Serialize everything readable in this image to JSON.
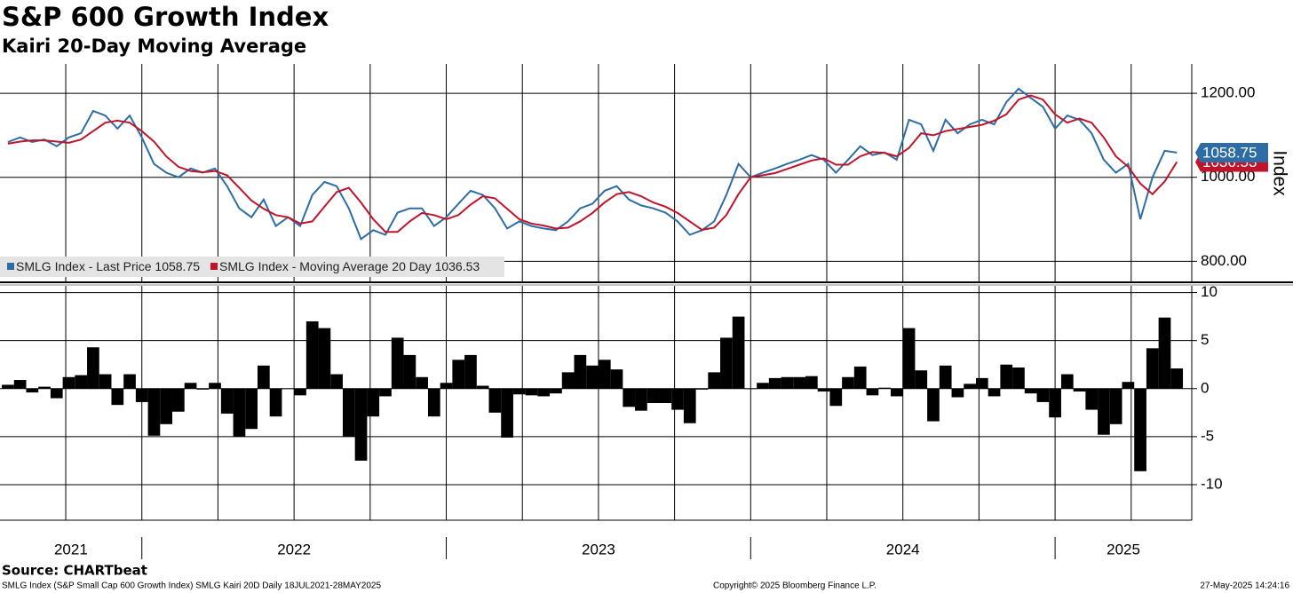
{
  "chart_data": [
    {
      "type": "line",
      "title": "S&P 600 Growth Index",
      "subtitle": "Kairi 20-Day Moving Average",
      "ylabel": "Index",
      "xlim": [
        2021.534,
        2025.449
      ],
      "xgrid": [
        2021.75,
        2022,
        2022.25,
        2022.5,
        2022.75,
        2023,
        2023.25,
        2023.5,
        2023.75,
        2024,
        2024.25,
        2024.5,
        2024.75,
        2025,
        2025.25
      ],
      "ylim": [
        750,
        1270
      ],
      "yticks": [
        {
          "value": 800,
          "label": "800.00"
        },
        {
          "value": 1000,
          "label": "1000.00"
        },
        {
          "value": 1200,
          "label": "1200.00"
        }
      ],
      "x": [
        2021.56,
        2021.6,
        2021.64,
        2021.68,
        2021.72,
        2021.76,
        2021.8,
        2021.84,
        2021.88,
        2021.92,
        2021.96,
        2022.0,
        2022.04,
        2022.08,
        2022.12,
        2022.16,
        2022.2,
        2022.24,
        2022.28,
        2022.32,
        2022.36,
        2022.4,
        2022.44,
        2022.48,
        2022.52,
        2022.56,
        2022.6,
        2022.64,
        2022.68,
        2022.72,
        2022.76,
        2022.8,
        2022.84,
        2022.88,
        2022.92,
        2022.96,
        2023.0,
        2023.04,
        2023.08,
        2023.12,
        2023.16,
        2023.2,
        2023.24,
        2023.28,
        2023.32,
        2023.36,
        2023.4,
        2023.44,
        2023.48,
        2023.52,
        2023.56,
        2023.6,
        2023.64,
        2023.68,
        2023.72,
        2023.76,
        2023.8,
        2023.84,
        2023.88,
        2023.92,
        2023.96,
        2024.0,
        2024.04,
        2024.08,
        2024.12,
        2024.16,
        2024.2,
        2024.24,
        2024.28,
        2024.32,
        2024.36,
        2024.4,
        2024.44,
        2024.48,
        2024.52,
        2024.56,
        2024.6,
        2024.64,
        2024.68,
        2024.72,
        2024.76,
        2024.8,
        2024.84,
        2024.88,
        2024.92,
        2024.96,
        2025.0,
        2025.04,
        2025.08,
        2025.12,
        2025.16,
        2025.2,
        2025.24,
        2025.28,
        2025.32,
        2025.36,
        2025.4
      ],
      "series": [
        {
          "name": "SMLG Index - Last Price",
          "color": "#2e6da4",
          "last_label": "1058.75",
          "values": [
            1084,
            1095,
            1084,
            1090,
            1074,
            1095,
            1105,
            1158,
            1147,
            1116,
            1147,
            1095,
            1032,
            1011,
            1000,
            1021,
            1011,
            1021,
            979,
            926,
            905,
            947,
            884,
            905,
            884,
            958,
            989,
            979,
            926,
            853,
            874,
            863,
            916,
            926,
            926,
            884,
            905,
            937,
            968,
            958,
            926,
            878,
            895,
            884,
            878,
            874,
            895,
            926,
            937,
            968,
            979,
            947,
            933,
            926,
            916,
            895,
            863,
            874,
            895,
            958,
            1032,
            1000,
            1011,
            1021,
            1032,
            1042,
            1053,
            1042,
            1011,
            1042,
            1074,
            1053,
            1059,
            1042,
            1137,
            1126,
            1063,
            1137,
            1105,
            1126,
            1137,
            1126,
            1179,
            1211,
            1189,
            1168,
            1116,
            1147,
            1137,
            1105,
            1042,
            1011,
            1032,
            900,
            1000,
            1063,
            1058.75
          ]
        },
        {
          "name": "SMLG Index - Moving Average 20 Day",
          "color": "#c0142b",
          "last_label": "1036.53",
          "values": [
            1080,
            1085,
            1088,
            1088,
            1085,
            1082,
            1090,
            1110,
            1130,
            1135,
            1130,
            1110,
            1085,
            1050,
            1025,
            1015,
            1012,
            1015,
            1005,
            975,
            945,
            925,
            910,
            905,
            890,
            895,
            930,
            965,
            975,
            940,
            900,
            870,
            870,
            895,
            915,
            910,
            900,
            910,
            935,
            955,
            950,
            925,
            900,
            890,
            885,
            878,
            880,
            895,
            915,
            940,
            960,
            965,
            955,
            940,
            930,
            915,
            895,
            875,
            880,
            910,
            960,
            1000,
            1005,
            1010,
            1020,
            1030,
            1040,
            1045,
            1030,
            1030,
            1050,
            1060,
            1058,
            1050,
            1070,
            1105,
            1100,
            1110,
            1115,
            1120,
            1125,
            1135,
            1150,
            1185,
            1195,
            1185,
            1150,
            1130,
            1140,
            1130,
            1095,
            1050,
            1025,
            985,
            960,
            990,
            1036.53
          ]
        }
      ]
    },
    {
      "type": "bar",
      "color": "#000000",
      "xlim": [
        2021.534,
        2025.449
      ],
      "xgrid": [
        2021.75,
        2022,
        2022.25,
        2022.5,
        2022.75,
        2023,
        2023.25,
        2023.5,
        2023.75,
        2024,
        2024.25,
        2024.5,
        2024.75,
        2025,
        2025.25
      ],
      "xticks": [
        2022,
        2023,
        2024,
        2025
      ],
      "year_labels": [
        "2021",
        "2022",
        "2023",
        "2024",
        "2025"
      ],
      "ylim": [
        -13.7,
        10.7
      ],
      "yticks": [
        10,
        5,
        0,
        -5,
        -10
      ],
      "values": [
        0.4,
        0.9,
        -0.4,
        0.2,
        -1.0,
        1.2,
        1.4,
        4.3,
        1.5,
        -1.7,
        1.5,
        -1.4,
        -4.9,
        -3.7,
        -2.4,
        0.6,
        -0.1,
        0.6,
        -2.6,
        -5.0,
        -4.2,
        2.4,
        -2.9,
        0,
        -0.7,
        7.0,
        6.3,
        1.5,
        -5.0,
        -7.5,
        -2.9,
        -0.8,
        5.3,
        3.5,
        1.2,
        -2.9,
        0.6,
        3.0,
        3.5,
        0.3,
        -2.5,
        -5.1,
        -0.6,
        -0.7,
        -0.8,
        -0.5,
        1.7,
        3.5,
        2.4,
        3.0,
        2.0,
        -1.9,
        -2.3,
        -1.5,
        -1.5,
        -2.2,
        -3.6,
        -0.1,
        1.7,
        5.3,
        7.5,
        0,
        0.6,
        1.1,
        1.2,
        1.2,
        1.3,
        -0.3,
        -1.8,
        1.2,
        2.3,
        -0.7,
        0.1,
        -0.8,
        6.3,
        1.9,
        -3.4,
        2.4,
        -0.9,
        0.5,
        1.1,
        -0.8,
        2.5,
        2.2,
        -0.5,
        -1.4,
        -3.0,
        1.5,
        -0.3,
        -2.2,
        -4.8,
        -3.7,
        0.7,
        -8.6,
        4.2,
        7.4,
        2.1
      ]
    }
  ],
  "source": "Source: CHARTbeat",
  "footer": {
    "left": "SMLG Index (S&P Small Cap 600 Growth Index) SMLG Kairi 20D  Daily 18JUL2021-28MAY2025",
    "center": "Copyright© 2025 Bloomberg Finance L.P.",
    "right": "27-May-2025 14:24:16"
  }
}
